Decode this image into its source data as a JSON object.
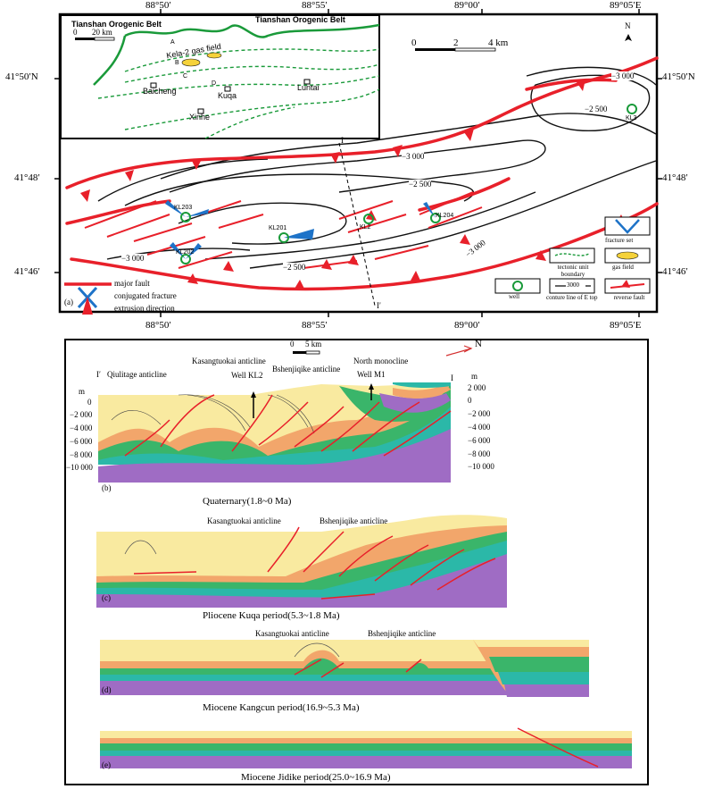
{
  "map": {
    "panel": "(a)",
    "coords": {
      "top": [
        "88°50′",
        "88°55′",
        "89°00′",
        "89°05′E"
      ],
      "bottom": [
        "88°50′",
        "88°55′",
        "89°00′",
        "89°05′E"
      ],
      "left": [
        "41°50′N",
        "41°48′",
        "41°46′"
      ],
      "right": [
        "41°50′N",
        "41°48′",
        "41°46′"
      ]
    },
    "scale": {
      "zero": "0",
      "mid": "2",
      "end": "4 km"
    },
    "north": "N",
    "inset": {
      "belt_left": "Tianshan Orogenic Belt",
      "belt_right": "Tianshan Orogenic Belt",
      "scale_zero": "0",
      "scale_end": "20 km",
      "gas_field": "Kela-2 gas field",
      "zones": [
        "A",
        "B",
        "C",
        "D"
      ],
      "towns": [
        "Baicheng",
        "Kuqa",
        "Luntai",
        "Xinhe"
      ]
    },
    "contours": [
      "−3 000",
      "−2 500",
      "−3 000",
      "−2 500",
      "−2 500",
      "−3 000",
      "−3 000",
      "−2 500"
    ],
    "wells": [
      "KL3",
      "KL203",
      "KL201",
      "KL2",
      "KL204",
      "KL202"
    ],
    "section_ends": [
      "I",
      "I′"
    ],
    "legend_left": [
      "major fault",
      "conjugated fracture",
      "extrusion direction"
    ],
    "legend_right": {
      "fracture_set": "fracture set",
      "tectonic_boundary": "tectonic unit boundary",
      "gas_field": "gas field",
      "well": "well",
      "contour_value": "3000",
      "contour": "conture line of E top",
      "reverse_fault": "reverse fault"
    }
  },
  "sections": {
    "scale": {
      "zero": "0",
      "end": "5 km"
    },
    "north": "N",
    "b": {
      "panel": "(b)",
      "end_left": "I′",
      "end_right": "I",
      "titles": [
        "Qiulitage anticline",
        "Kasangtuokai anticline",
        "Well KL2",
        "Bshenjiqike anticline",
        "North monocline",
        "Well M1"
      ],
      "unit": "m",
      "depths_left": [
        "0",
        "−2 000",
        "−4 000",
        "−6 000",
        "−8 000",
        "−10 000"
      ],
      "depths_right": [
        "2 000",
        "0",
        "−2 000",
        "−4 000",
        "−6 000",
        "−8 000",
        "−10 000"
      ],
      "caption": "Quaternary(1.8~0 Ma)"
    },
    "c": {
      "panel": "(c)",
      "titles": [
        "Kasangtuokai anticline",
        "Bshenjiqike anticline"
      ],
      "caption": "Pliocene Kuqa period(5.3~1.8 Ma)"
    },
    "d": {
      "panel": "(d)",
      "titles": [
        "Kasangtuokai anticline",
        "Bshenjiqike anticline"
      ],
      "caption": "Miocene Kangcun period(16.9~5.3 Ma)"
    },
    "e": {
      "panel": "(e)",
      "caption": "Miocene Jidike period(25.0~16.9 Ma)"
    }
  },
  "colors": {
    "fault": "#e8202a",
    "yellow": "#f9eaa0",
    "orange": "#f2a66b",
    "green": "#3ab56a",
    "teal": "#2bb8a8",
    "purple": "#9f6cc4",
    "boundary": "#1a9a3a"
  }
}
